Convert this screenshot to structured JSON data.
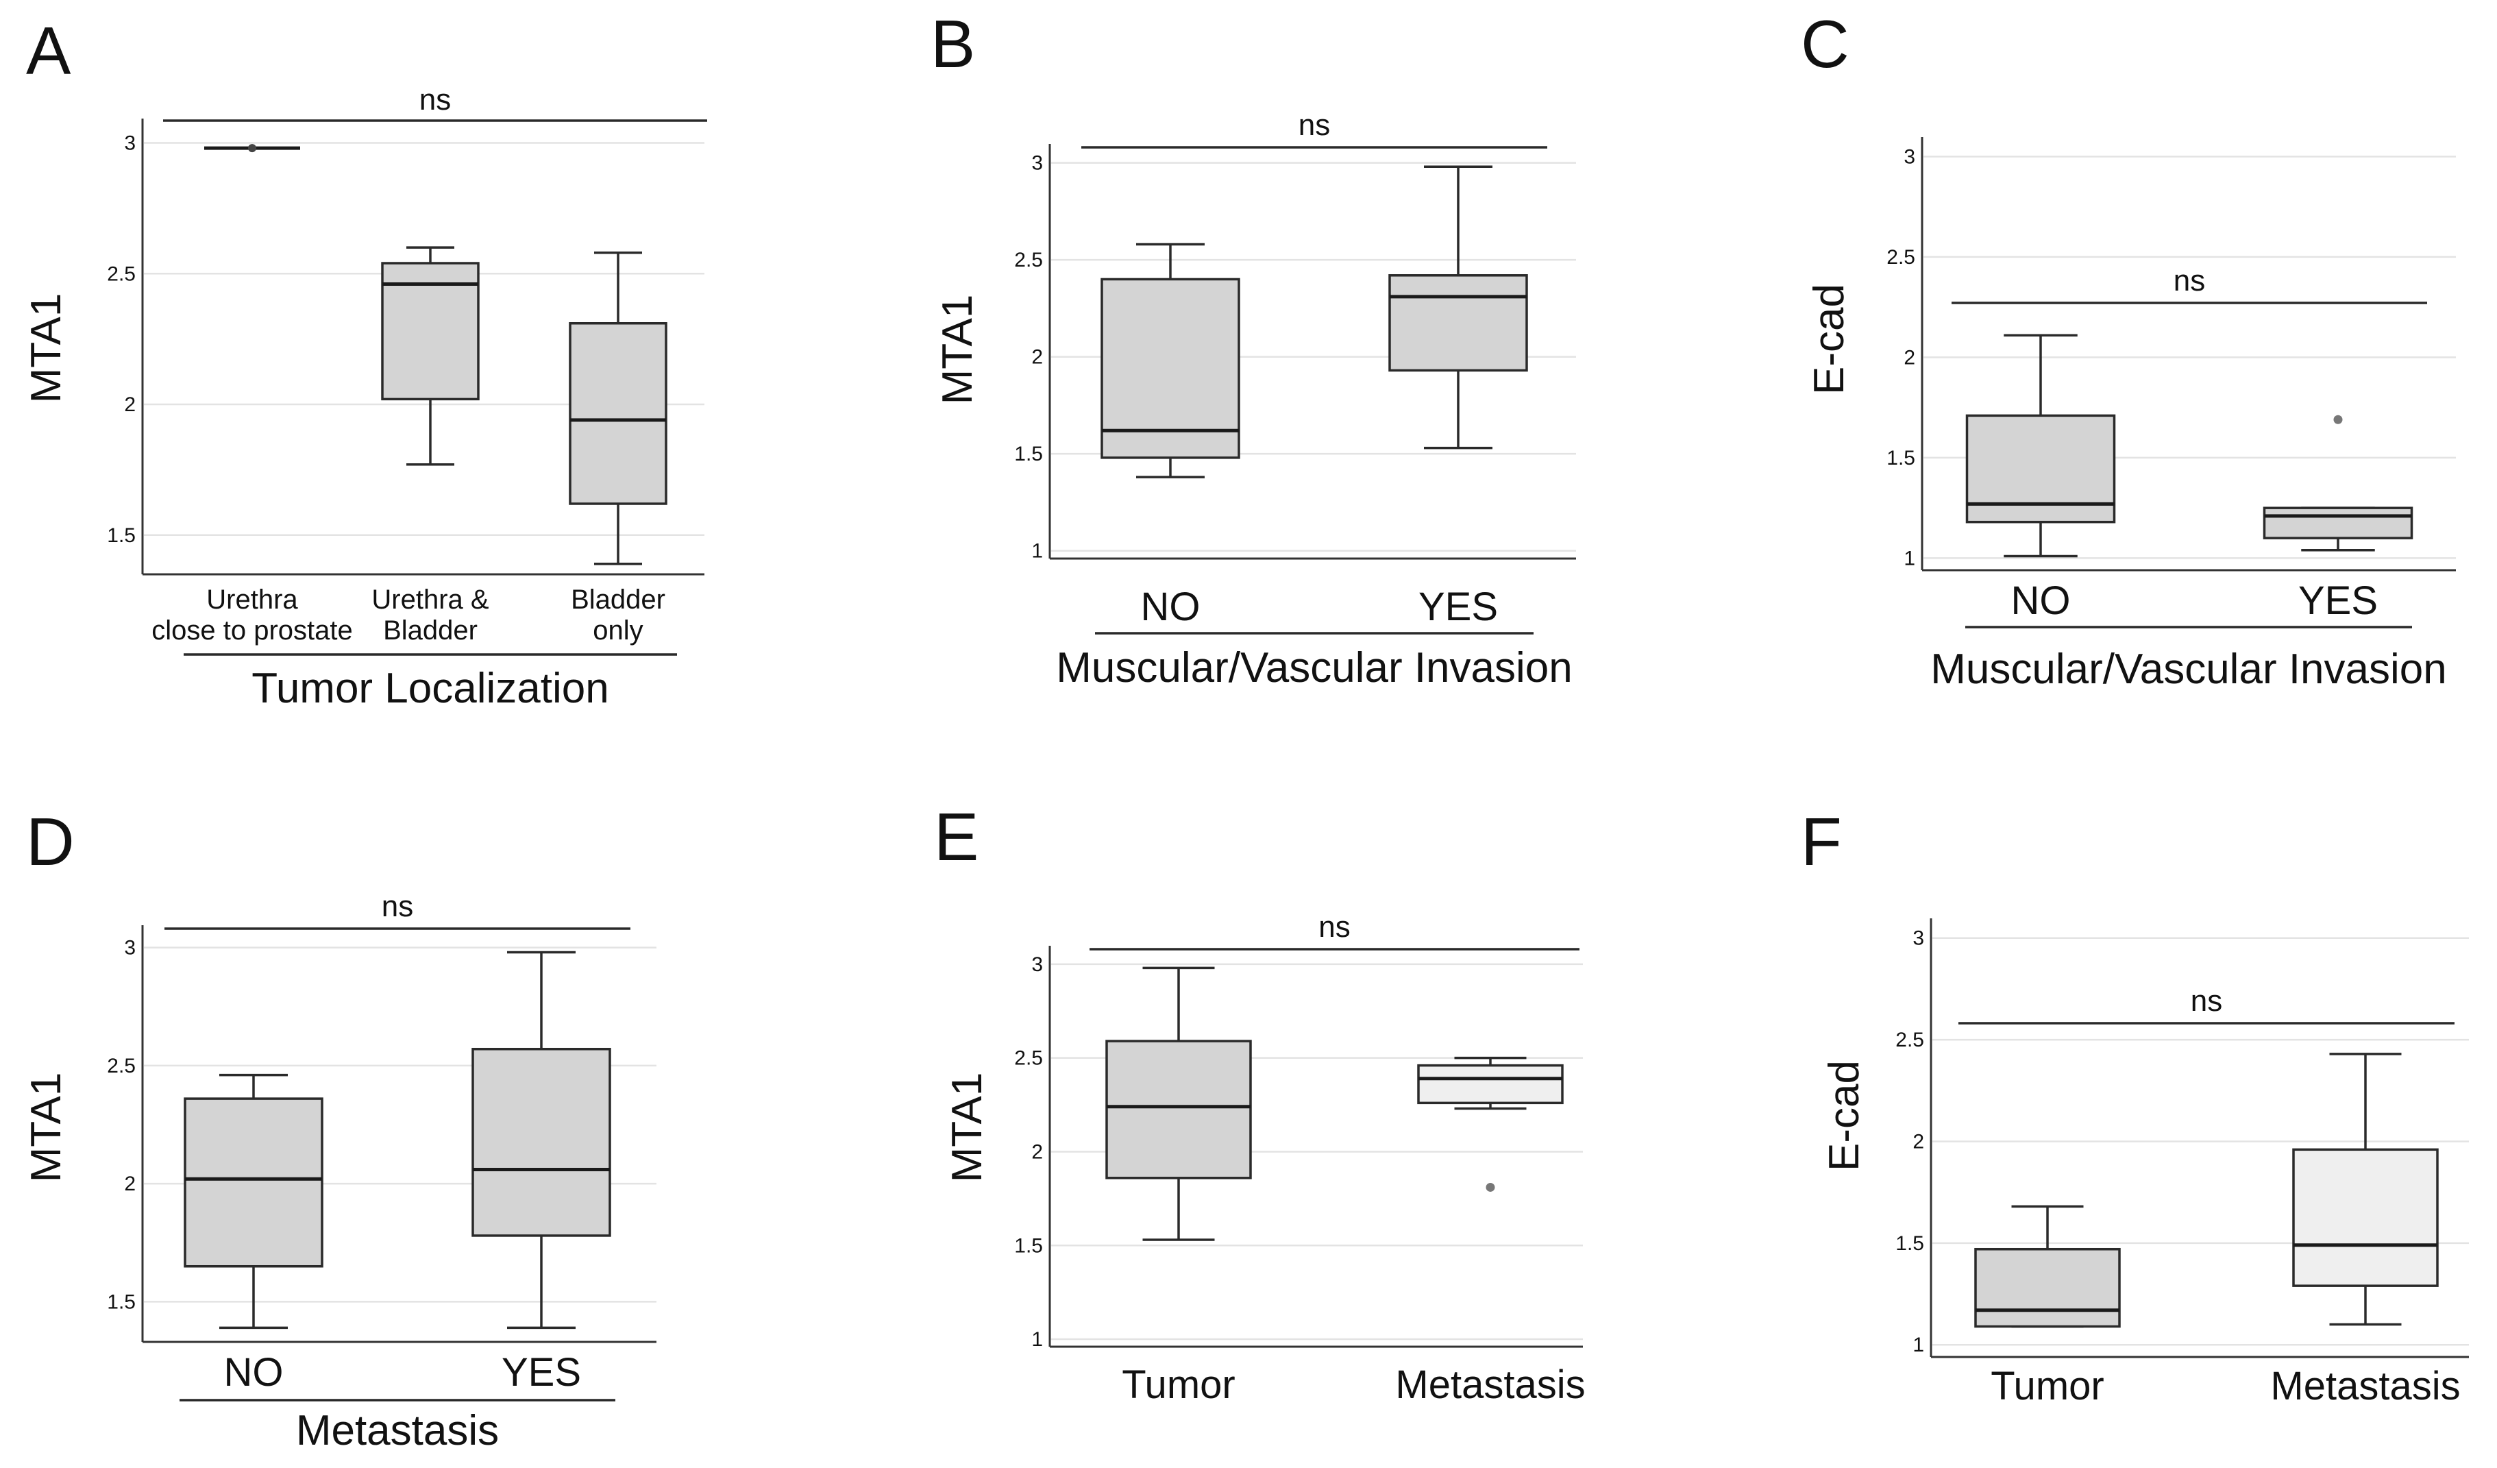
{
  "colors": {
    "box_fill": "#d4d4d4",
    "box_fill_light": "#efefef",
    "outlier": "#777777",
    "grid": "#e3e3e3"
  },
  "chart_data": [
    {
      "panel": "A",
      "type": "box",
      "ylabel": "MTA1",
      "ylim": [
        1.35,
        3.08
      ],
      "yticks": [
        1.5,
        2,
        2.5,
        3
      ],
      "ytick_labels": [
        "1.5",
        "2",
        "2.5",
        "3"
      ],
      "categories": [
        [
          "Urethra",
          "close to prostate"
        ],
        [
          "Urethra &",
          "Bladder"
        ],
        [
          "Bladder",
          "only"
        ]
      ],
      "group_label": "Tumor Localization",
      "significance": "ns",
      "sig_span": [
        0,
        2
      ],
      "boxes": [
        {
          "min": 2.98,
          "q1": 2.98,
          "median": 2.98,
          "q3": 2.98,
          "max": 2.98,
          "outliers": [],
          "point": true
        },
        {
          "min": 1.77,
          "q1": 2.02,
          "median": 2.46,
          "q3": 2.54,
          "max": 2.6,
          "outliers": []
        },
        {
          "min": 1.39,
          "q1": 1.62,
          "median": 1.94,
          "q3": 2.31,
          "max": 2.58,
          "outliers": []
        }
      ]
    },
    {
      "panel": "B",
      "type": "box",
      "ylabel": "MTA1",
      "ylim": [
        0.96,
        3.08
      ],
      "yticks": [
        1,
        1.5,
        2,
        2.5,
        3
      ],
      "ytick_labels": [
        "1",
        "1.5",
        "2",
        "2.5",
        "3"
      ],
      "categories": [
        [
          "NO"
        ],
        [
          "YES"
        ]
      ],
      "group_label": "Muscular/Vascular Invasion",
      "significance": "ns",
      "sig_span": [
        0,
        1
      ],
      "boxes": [
        {
          "min": 1.38,
          "q1": 1.48,
          "median": 1.62,
          "q3": 2.4,
          "max": 2.58,
          "outliers": []
        },
        {
          "min": 1.53,
          "q1": 1.93,
          "median": 2.31,
          "q3": 2.42,
          "max": 2.98,
          "outliers": []
        }
      ]
    },
    {
      "panel": "C",
      "type": "box",
      "ylabel": "E-cad",
      "ylim": [
        0.94,
        3.08
      ],
      "yticks": [
        1,
        1.5,
        2,
        2.5,
        3
      ],
      "ytick_labels": [
        "1",
        "1.5",
        "2",
        "2.5",
        "3"
      ],
      "categories": [
        [
          "NO"
        ],
        [
          "YES"
        ]
      ],
      "group_label": "Muscular/Vascular Invasion",
      "significance": "ns",
      "sig_span": [
        0,
        1
      ],
      "boxes": [
        {
          "min": 1.01,
          "q1": 1.18,
          "median": 1.27,
          "q3": 1.71,
          "max": 2.11,
          "outliers": []
        },
        {
          "min": 1.04,
          "q1": 1.1,
          "median": 1.21,
          "q3": 1.25,
          "max": 1.25,
          "outliers": [
            1.69
          ]
        }
      ]
    },
    {
      "panel": "D",
      "type": "box",
      "ylabel": "MTA1",
      "ylim": [
        1.33,
        3.08
      ],
      "yticks": [
        1.5,
        2,
        2.5,
        3
      ],
      "ytick_labels": [
        "1.5",
        "2",
        "2.5",
        "3"
      ],
      "categories": [
        [
          "NO"
        ],
        [
          "YES"
        ]
      ],
      "group_label": "Metastasis",
      "significance": "ns",
      "sig_span": [
        0,
        1
      ],
      "boxes": [
        {
          "min": 1.39,
          "q1": 1.65,
          "median": 2.02,
          "q3": 2.36,
          "max": 2.46,
          "outliers": []
        },
        {
          "min": 1.39,
          "q1": 1.78,
          "median": 2.06,
          "q3": 2.57,
          "max": 2.98,
          "outliers": []
        }
      ]
    },
    {
      "panel": "E",
      "type": "box",
      "ylabel": "MTA1",
      "ylim": [
        0.96,
        3.08
      ],
      "yticks": [
        1,
        1.5,
        2,
        2.5,
        3
      ],
      "ytick_labels": [
        "1",
        "1.5",
        "2",
        "2.5",
        "3"
      ],
      "categories": [
        [
          "Tumor"
        ],
        [
          "Metastasis"
        ]
      ],
      "group_label": "",
      "significance": "ns",
      "sig_span": [
        0,
        1
      ],
      "boxes": [
        {
          "min": 1.53,
          "q1": 1.86,
          "median": 2.24,
          "q3": 2.59,
          "max": 2.98,
          "outliers": []
        },
        {
          "min": 2.23,
          "q1": 2.26,
          "median": 2.39,
          "q3": 2.46,
          "max": 2.5,
          "outliers": [
            1.81
          ],
          "light": true
        }
      ]
    },
    {
      "panel": "F",
      "type": "box",
      "ylabel": "E-cad",
      "ylim": [
        0.94,
        3.08
      ],
      "yticks": [
        1,
        1.5,
        2,
        2.5,
        3
      ],
      "ytick_labels": [
        "1",
        "1.5",
        "2",
        "2.5",
        "3"
      ],
      "categories": [
        [
          "Tumor"
        ],
        [
          "Metastasis"
        ]
      ],
      "group_label": "",
      "significance": "ns",
      "sig_span": [
        0,
        1
      ],
      "boxes": [
        {
          "min": 1.09,
          "q1": 1.09,
          "median": 1.17,
          "q3": 1.47,
          "max": 1.68,
          "outliers": []
        },
        {
          "min": 1.1,
          "q1": 1.29,
          "median": 1.49,
          "q3": 1.96,
          "max": 2.43,
          "outliers": [],
          "light": true
        }
      ]
    }
  ]
}
